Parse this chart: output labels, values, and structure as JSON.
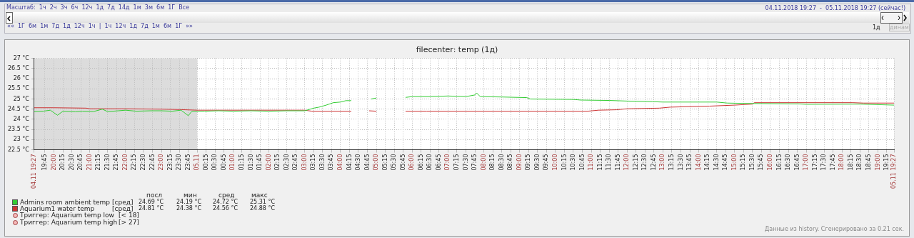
{
  "chart_data": {
    "type": "line",
    "title": "filecenter: temp (1д)",
    "xlim": [
      "2018-11-04T19:27",
      "2018-11-05T19:27"
    ],
    "ylim": [
      22.5,
      27
    ],
    "yticks": [
      {
        "value": 22.5,
        "label": "22.5 °C"
      },
      {
        "value": 23,
        "label": "23 °C"
      },
      {
        "value": 23.5,
        "label": "23.5 °C"
      },
      {
        "value": 24,
        "label": "24 °C"
      },
      {
        "value": 24.5,
        "label": "24.5 °C"
      },
      {
        "value": 25,
        "label": "25 °C"
      },
      {
        "value": 25.5,
        "label": "25.5 °C"
      },
      {
        "value": 26,
        "label": "26 °C"
      },
      {
        "value": 26.5,
        "label": "26.5 °C"
      },
      {
        "value": 27,
        "label": "27 °C"
      }
    ],
    "xticks": [
      {
        "value": "2018-11-04T19:27",
        "label": "04.11 19:27"
      },
      {
        "value": "2018-11-04T19:45",
        "label": "19:45"
      },
      {
        "value": "2018-11-04T20:00",
        "label": "20:00"
      },
      {
        "value": "2018-11-04T20:15",
        "label": "20:15"
      },
      {
        "value": "2018-11-04T20:30",
        "label": "20:30"
      },
      {
        "value": "2018-11-04T20:45",
        "label": "20:45"
      },
      {
        "value": "2018-11-04T21:00",
        "label": "21:00"
      },
      {
        "value": "2018-11-04T21:15",
        "label": "21:15"
      },
      {
        "value": "2018-11-04T21:30",
        "label": "21:30"
      },
      {
        "value": "2018-11-04T21:45",
        "label": "21:45"
      },
      {
        "value": "2018-11-04T22:00",
        "label": "22:00"
      },
      {
        "value": "2018-11-04T22:15",
        "label": "22:15"
      },
      {
        "value": "2018-11-04T22:30",
        "label": "22:30"
      },
      {
        "value": "2018-11-04T22:45",
        "label": "22:45"
      },
      {
        "value": "2018-11-04T23:00",
        "label": "23:00"
      },
      {
        "value": "2018-11-04T23:15",
        "label": "23:15"
      },
      {
        "value": "2018-11-04T23:30",
        "label": "23:30"
      },
      {
        "value": "2018-11-04T23:45",
        "label": "23:45"
      },
      {
        "value": "2018-11-05T00:00",
        "label": "05.11"
      },
      {
        "value": "2018-11-05T00:15",
        "label": "00:15"
      },
      {
        "value": "2018-11-05T00:30",
        "label": "00:30"
      },
      {
        "value": "2018-11-05T00:45",
        "label": "00:45"
      },
      {
        "value": "2018-11-05T01:00",
        "label": "01:00"
      },
      {
        "value": "2018-11-05T01:15",
        "label": "01:15"
      },
      {
        "value": "2018-11-05T01:30",
        "label": "01:30"
      },
      {
        "value": "2018-11-05T01:45",
        "label": "01:45"
      },
      {
        "value": "2018-11-05T02:00",
        "label": "02:00"
      },
      {
        "value": "2018-11-05T02:15",
        "label": "02:15"
      },
      {
        "value": "2018-11-05T02:30",
        "label": "02:30"
      },
      {
        "value": "2018-11-05T02:45",
        "label": "02:45"
      },
      {
        "value": "2018-11-05T03:00",
        "label": "03:00"
      },
      {
        "value": "2018-11-05T03:15",
        "label": "03:15"
      },
      {
        "value": "2018-11-05T03:30",
        "label": "03:30"
      },
      {
        "value": "2018-11-05T03:45",
        "label": "03:45"
      },
      {
        "value": "2018-11-05T04:00",
        "label": "04:00"
      },
      {
        "value": "2018-11-05T04:15",
        "label": "04:15"
      },
      {
        "value": "2018-11-05T04:30",
        "label": "04:30"
      },
      {
        "value": "2018-11-05T04:45",
        "label": "04:45"
      },
      {
        "value": "2018-11-05T05:00",
        "label": "05:00"
      },
      {
        "value": "2018-11-05T05:15",
        "label": "05:15"
      },
      {
        "value": "2018-11-05T05:30",
        "label": "05:30"
      },
      {
        "value": "2018-11-05T05:45",
        "label": "05:45"
      },
      {
        "value": "2018-11-05T06:00",
        "label": "06:00"
      },
      {
        "value": "2018-11-05T06:15",
        "label": "06:15"
      },
      {
        "value": "2018-11-05T06:30",
        "label": "06:30"
      },
      {
        "value": "2018-11-05T06:45",
        "label": "06:45"
      },
      {
        "value": "2018-11-05T07:00",
        "label": "07:00"
      },
      {
        "value": "2018-11-05T07:15",
        "label": "07:15"
      },
      {
        "value": "2018-11-05T07:30",
        "label": "07:30"
      },
      {
        "value": "2018-11-05T07:45",
        "label": "07:45"
      },
      {
        "value": "2018-11-05T08:00",
        "label": "08:00"
      },
      {
        "value": "2018-11-05T08:15",
        "label": "08:15"
      },
      {
        "value": "2018-11-05T08:30",
        "label": "08:30"
      },
      {
        "value": "2018-11-05T08:45",
        "label": "08:45"
      },
      {
        "value": "2018-11-05T09:00",
        "label": "09:00"
      },
      {
        "value": "2018-11-05T09:15",
        "label": "09:15"
      },
      {
        "value": "2018-11-05T09:30",
        "label": "09:30"
      },
      {
        "value": "2018-11-05T09:45",
        "label": "09:45"
      },
      {
        "value": "2018-11-05T10:00",
        "label": "10:00"
      },
      {
        "value": "2018-11-05T10:15",
        "label": "10:15"
      },
      {
        "value": "2018-11-05T10:30",
        "label": "10:30"
      },
      {
        "value": "2018-11-05T10:45",
        "label": "10:45"
      },
      {
        "value": "2018-11-05T11:00",
        "label": "11:00"
      },
      {
        "value": "2018-11-05T11:15",
        "label": "11:15"
      },
      {
        "value": "2018-11-05T11:30",
        "label": "11:30"
      },
      {
        "value": "2018-11-05T11:45",
        "label": "11:45"
      },
      {
        "value": "2018-11-05T12:00",
        "label": "12:00"
      },
      {
        "value": "2018-11-05T12:15",
        "label": "12:15"
      },
      {
        "value": "2018-11-05T12:30",
        "label": "12:30"
      },
      {
        "value": "2018-11-05T12:45",
        "label": "12:45"
      },
      {
        "value": "2018-11-05T13:00",
        "label": "13:00"
      },
      {
        "value": "2018-11-05T13:15",
        "label": "13:15"
      },
      {
        "value": "2018-11-05T13:30",
        "label": "13:30"
      },
      {
        "value": "2018-11-05T13:45",
        "label": "13:45"
      },
      {
        "value": "2018-11-05T14:00",
        "label": "14:00"
      },
      {
        "value": "2018-11-05T14:15",
        "label": "14:15"
      },
      {
        "value": "2018-11-05T14:30",
        "label": "14:30"
      },
      {
        "value": "2018-11-05T14:45",
        "label": "14:45"
      },
      {
        "value": "2018-11-05T15:00",
        "label": "15:00"
      },
      {
        "value": "2018-11-05T15:15",
        "label": "15:15"
      },
      {
        "value": "2018-11-05T15:30",
        "label": "15:30"
      },
      {
        "value": "2018-11-05T15:45",
        "label": "15:45"
      },
      {
        "value": "2018-11-05T16:00",
        "label": "16:00"
      },
      {
        "value": "2018-11-05T16:15",
        "label": "16:15"
      },
      {
        "value": "2018-11-05T16:30",
        "label": "16:30"
      },
      {
        "value": "2018-11-05T16:45",
        "label": "16:45"
      },
      {
        "value": "2018-11-05T17:00",
        "label": "17:00"
      },
      {
        "value": "2018-11-05T17:15",
        "label": "17:15"
      },
      {
        "value": "2018-11-05T17:30",
        "label": "17:30"
      },
      {
        "value": "2018-11-05T17:45",
        "label": "17:45"
      },
      {
        "value": "2018-11-05T18:00",
        "label": "18:00"
      },
      {
        "value": "2018-11-05T18:15",
        "label": "18:15"
      },
      {
        "value": "2018-11-05T18:30",
        "label": "18:30"
      },
      {
        "value": "2018-11-05T18:45",
        "label": "18:45"
      },
      {
        "value": "2018-11-05T19:00",
        "label": "19:00"
      },
      {
        "value": "2018-11-05T19:15",
        "label": "19:15"
      },
      {
        "value": "2018-11-05T19:27",
        "label": "05.11 19:27"
      }
    ],
    "grid": true,
    "legend": "bottom",
    "bands": [
      {
        "axis": "x",
        "from": "2018-11-04T19:27",
        "to": "2018-11-05T00:00",
        "color": "#dcdcdc"
      }
    ],
    "series": [
      {
        "name": "Admins room ambient temp",
        "color": "#33cc33",
        "x": [
          "2018-11-04T19:27",
          "2018-11-04T19:42",
          "2018-11-04T19:54",
          "2018-11-04T20:06",
          "2018-11-04T20:15",
          "2018-11-04T20:36",
          "2018-11-04T20:48",
          "2018-11-04T21:06",
          "2018-11-04T21:21",
          "2018-11-04T21:30",
          "2018-11-04T21:48",
          "2018-11-04T22:00",
          "2018-11-04T22:18",
          "2018-11-04T22:42",
          "2018-11-04T23:00",
          "2018-11-04T23:18",
          "2018-11-04T23:33",
          "2018-11-04T23:45",
          "2018-11-04T23:51",
          "2018-11-05T00:12",
          "2018-11-05T00:36",
          "2018-11-05T01:00",
          "2018-11-05T01:30",
          "2018-11-05T02:00",
          "2018-11-05T02:30",
          "2018-11-05T03:00",
          "2018-11-05T03:15",
          "2018-11-05T03:24",
          "2018-11-05T03:36",
          "2018-11-05T03:48",
          "2018-11-05T04:00",
          "2018-11-05T04:09",
          "2018-11-05T04:18",
          "2018-11-05T04:33",
          "2018-11-05T04:51",
          "2018-11-05T05:00",
          "2018-11-05T05:30",
          "2018-11-05T05:49",
          "2018-11-05T06:00",
          "2018-11-05T06:30",
          "2018-11-05T07:00",
          "2018-11-05T07:30",
          "2018-11-05T07:45",
          "2018-11-05T07:48",
          "2018-11-05T07:54",
          "2018-11-05T08:30",
          "2018-11-05T09:12",
          "2018-11-05T09:18",
          "2018-11-05T10:30",
          "2018-11-05T10:42",
          "2018-11-05T11:30",
          "2018-11-05T12:00",
          "2018-11-05T12:42",
          "2018-11-05T13:00",
          "2018-11-05T14:30",
          "2018-11-05T14:48",
          "2018-11-05T15:30",
          "2018-11-05T16:48",
          "2018-11-05T17:00",
          "2018-11-05T18:30",
          "2018-11-05T19:27"
        ],
        "values": [
          24.38,
          24.4,
          24.45,
          24.2,
          24.4,
          24.37,
          24.4,
          24.38,
          24.5,
          24.38,
          24.42,
          24.45,
          24.4,
          24.42,
          24.42,
          24.4,
          24.45,
          24.18,
          24.4,
          24.4,
          24.42,
          24.4,
          24.42,
          24.4,
          24.42,
          24.42,
          24.55,
          24.6,
          24.7,
          24.82,
          24.85,
          24.92,
          24.92,
          null,
          25.0,
          25.05,
          null,
          25.08,
          25.12,
          25.12,
          25.15,
          25.12,
          25.2,
          25.3,
          25.12,
          25.1,
          25.07,
          25.0,
          24.98,
          24.95,
          24.93,
          24.9,
          24.87,
          24.85,
          24.85,
          24.8,
          24.78,
          24.76,
          24.74,
          24.75,
          24.7
        ]
      },
      {
        "name": "Aquarium1 water temp",
        "color": "#cc3333",
        "x": [
          "2018-11-04T19:27",
          "2018-11-04T20:00",
          "2018-11-04T20:54",
          "2018-11-04T21:00",
          "2018-11-04T22:00",
          "2018-11-04T23:00",
          "2018-11-04T23:30",
          "2018-11-05T00:00",
          "2018-11-05T03:00",
          "2018-11-05T03:12",
          "2018-11-05T04:18",
          "2018-11-05T04:33",
          "2018-11-05T04:48",
          "2018-11-05T05:00",
          "2018-11-05T05:24",
          "2018-11-05T05:49",
          "2018-11-05T06:24",
          "2018-11-05T07:00",
          "2018-11-05T09:00",
          "2018-11-05T10:54",
          "2018-11-05T11:12",
          "2018-11-05T11:42",
          "2018-11-05T12:00",
          "2018-11-05T12:54",
          "2018-11-05T13:12",
          "2018-11-05T14:18",
          "2018-11-05T15:00",
          "2018-11-05T15:30",
          "2018-11-05T15:33",
          "2018-11-05T18:18",
          "2018-11-05T18:36",
          "2018-11-05T19:27"
        ],
        "values": [
          24.57,
          24.57,
          24.55,
          24.52,
          24.52,
          24.5,
          24.48,
          24.45,
          24.45,
          24.4,
          24.4,
          null,
          24.42,
          24.4,
          null,
          24.4,
          24.4,
          24.4,
          24.4,
          24.4,
          24.45,
          24.47,
          24.52,
          24.55,
          24.6,
          24.65,
          24.7,
          24.75,
          24.82,
          24.82,
          24.8,
          24.8
        ]
      }
    ],
    "annotations": [
      "Масштаб:  1ч  2ч  3ч  6ч  12ч  1д  7д  14д  1м  3м  6м  1Г  Все",
      "04.11.2018 19:27  -  05.11.2018 19:27 (сейчас!)",
      "««  1Г  6м  1м  7д  1д  12ч  1ч  |  1ч  12ч  1д  7д  1м  6м  1Г  »»",
      "1д",
      "динам",
      "посл",
      "мин",
      "сред",
      "макс",
      "[сред]",
      "24.69 °C",
      "24.19 °C",
      "24.72 °C",
      "25.31 °C",
      "[сред]",
      "24.81 °C",
      "24.38 °C",
      "24.56 °C",
      "24.88 °C",
      "Триггер: Aquarium temp low",
      "[< 18]",
      "Триггер: Aquarium temp high",
      "[> 27]",
      "Данные из history. Сгенерировано за 0.21 сек."
    ]
  }
}
